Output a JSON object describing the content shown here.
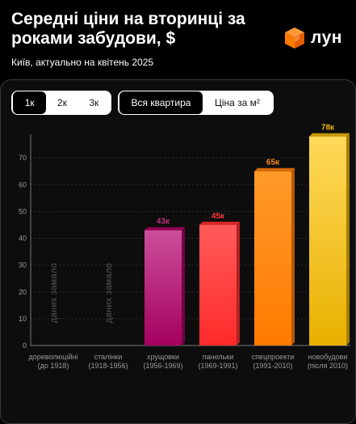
{
  "header": {
    "title": "Середні ціни на вторинці за роками забудови, $",
    "subtitle": "Київ, актуально на квітень 2025",
    "logo_text": "лун",
    "logo_icon": "orange-cube-icon"
  },
  "controls": {
    "rooms": [
      {
        "label": "1к",
        "active": true
      },
      {
        "label": "2к",
        "active": false
      },
      {
        "label": "3к",
        "active": false
      }
    ],
    "mode": [
      {
        "label": "Вся квартира",
        "active": true
      },
      {
        "label": "Ціна за м²",
        "active": false
      }
    ]
  },
  "chart_data": {
    "type": "bar",
    "title": "Середні ціни на вторинці за роками забудови, $",
    "ylim": [
      0,
      80
    ],
    "yticks": [
      0,
      10,
      20,
      30,
      40,
      50,
      60,
      70
    ],
    "grid": true,
    "categories": [
      {
        "name": "дореволюційні",
        "period": "(до 1918)",
        "value": null,
        "label": "даних замало",
        "color_top": "",
        "color_bottom": ""
      },
      {
        "name": "сталінки",
        "period": "(1918-1956)",
        "value": null,
        "label": "даних замало",
        "color_top": "",
        "color_bottom": ""
      },
      {
        "name": "хрущовки",
        "period": "(1956-1969)",
        "value": 43,
        "label": "43к",
        "color_top": "#cc4f9a",
        "color_bottom": "#a3005f",
        "label_color": "#c0307a"
      },
      {
        "name": "панельки",
        "period": "(1969-1991)",
        "value": 45,
        "label": "45к",
        "color_top": "#ff5a5a",
        "color_bottom": "#ff2a2a",
        "label_color": "#ff3a3a"
      },
      {
        "name": "спецпроекти",
        "period": "(1991-2010)",
        "value": 65,
        "label": "65к",
        "color_top": "#ff9a2a",
        "color_bottom": "#ff7a00",
        "label_color": "#ff8a1a"
      },
      {
        "name": "новобудови",
        "period": "(після 2010)",
        "value": 78,
        "label": "78к",
        "color_top": "#ffd95a",
        "color_bottom": "#e8b000",
        "label_color": "#f2b300"
      }
    ]
  }
}
